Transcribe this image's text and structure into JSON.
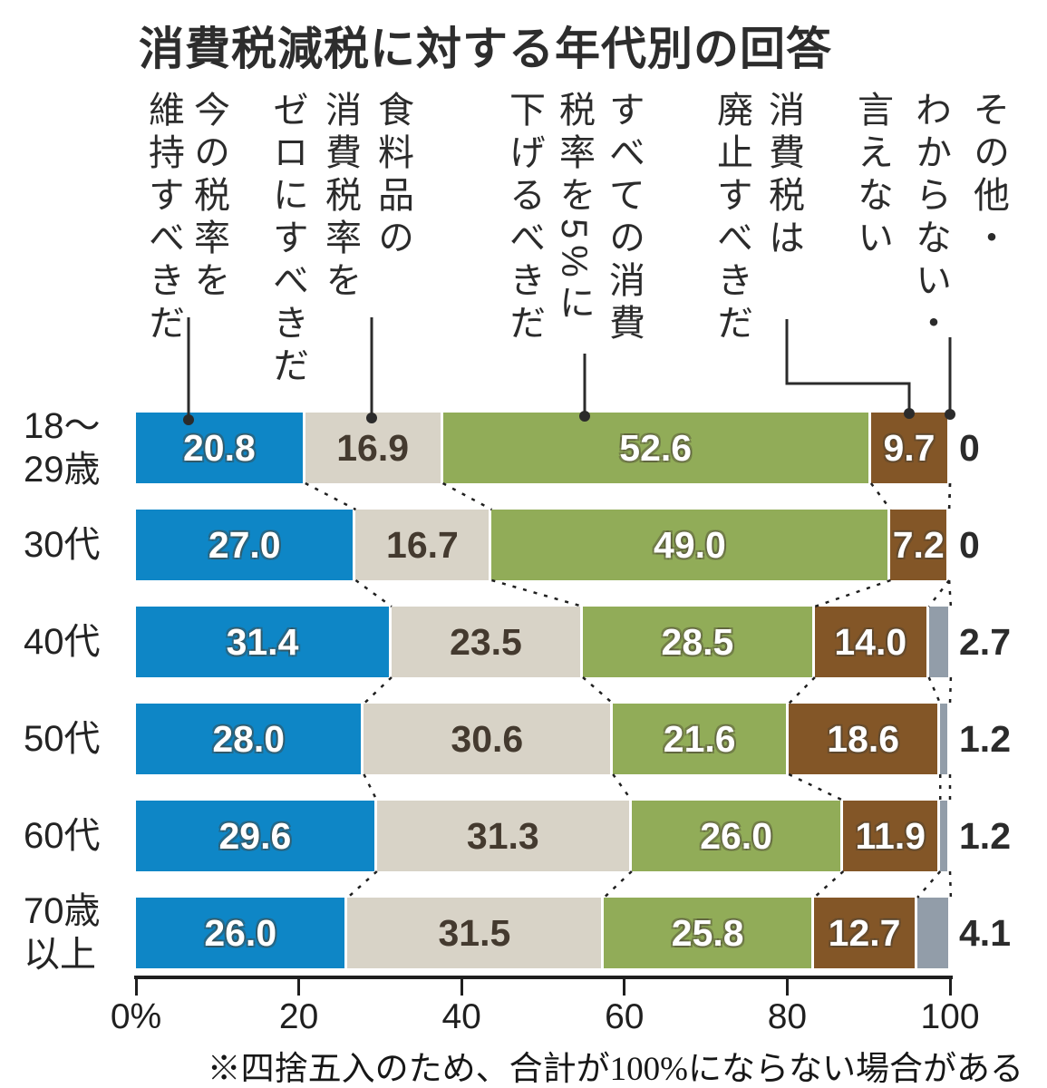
{
  "title": "消費税減税に対する年代別の回答",
  "footnote": "※四捨五入のため、合計が100%にならない場合がある",
  "chart_data": {
    "type": "bar",
    "orientation": "horizontal",
    "stacked": true,
    "unit": "%",
    "title": "消費税減税に対する年代別の回答",
    "note": "※四捨五入のため、合計が100%にならない場合がある",
    "categories": [
      "18〜\n29歳",
      "30代",
      "40代",
      "50代",
      "60代",
      "70歳\n以上"
    ],
    "series": [
      {
        "name": "今の税率を維持すべきだ",
        "label_lines": "今の税率を\n維持すべきだ",
        "color": "#0e86c6",
        "value_color": "#ffffff",
        "values": [
          20.8,
          27.0,
          31.4,
          28.0,
          29.6,
          26.0
        ],
        "labels": [
          "20.8",
          "27.0",
          "31.4",
          "28.0",
          "29.6",
          "26.0"
        ]
      },
      {
        "name": "食料品の消費税率をゼロにすべきだ",
        "label_lines": "食料品の\n消費税率を\nゼロにすべきだ",
        "color": "#d8d3c7",
        "value_color": "#443a2f",
        "values": [
          16.9,
          16.7,
          23.5,
          30.6,
          31.3,
          31.5
        ],
        "labels": [
          "16.9",
          "16.7",
          "23.5",
          "30.6",
          "31.3",
          "31.5"
        ]
      },
      {
        "name": "すべての消費税率を5%に下げるべきだ",
        "label_lines": "すべての消費\n税率を5%に\n下げるべきだ",
        "color": "#91ac58",
        "value_color": "#ffffff",
        "values": [
          52.6,
          49.0,
          28.5,
          21.6,
          26.0,
          25.8
        ],
        "labels": [
          "52.6",
          "49.0",
          "28.5",
          "21.6",
          "26.0",
          "25.8"
        ]
      },
      {
        "name": "消費税は廃止すべきだ",
        "label_lines": "消費税は\n廃止すべきだ",
        "color": "#835627",
        "value_color": "#ffffff",
        "values": [
          9.7,
          7.2,
          14.0,
          18.6,
          11.9,
          12.7
        ],
        "labels": [
          "9.7",
          "7.2",
          "14.0",
          "18.6",
          "11.9",
          "12.7"
        ]
      },
      {
        "name": "その他・わからない・言えない",
        "label_lines": "その他・\nわからない・\n言えない",
        "color": "#929da9",
        "value_color": "#2b2b2b",
        "values_outside": true,
        "values": [
          0,
          0,
          2.7,
          1.2,
          1.2,
          4.1
        ],
        "labels": [
          "0",
          "0",
          "2.7",
          "1.2",
          "1.2",
          "4.1"
        ]
      }
    ],
    "xlabel_ticks": [
      "0%",
      "20",
      "40",
      "60",
      "80",
      "100"
    ],
    "xlim": [
      0,
      100
    ],
    "grid": false,
    "legend_position": "top-vertical-text"
  }
}
